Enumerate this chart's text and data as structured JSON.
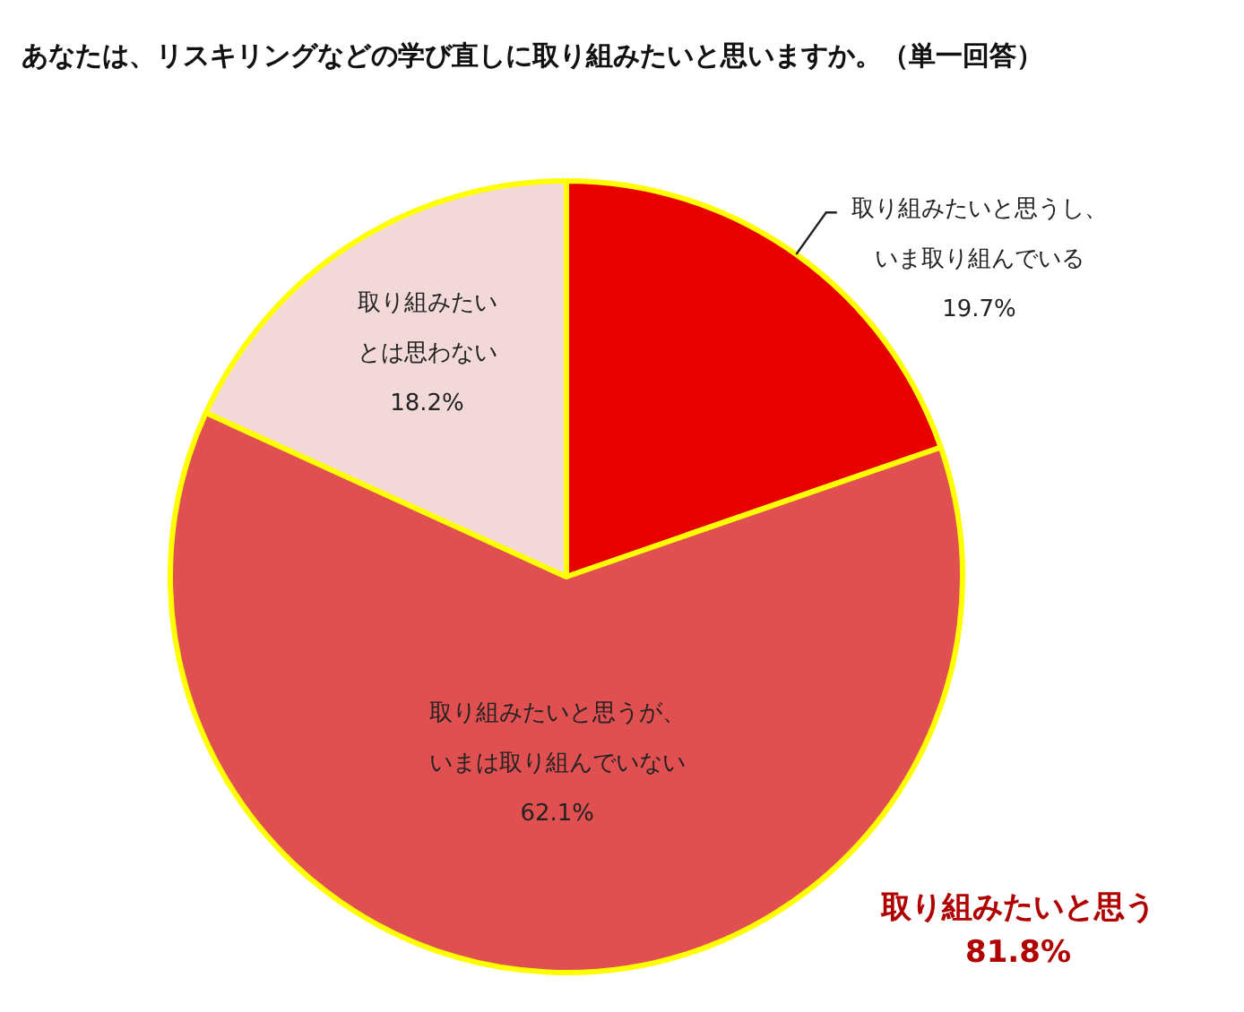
{
  "chart_data": {
    "type": "pie",
    "title": "あなたは、リスキリングなどの学び直しに取り組みたいと思いますか。（単一回答）",
    "categories": [
      "取り組みたいと思うし、いま取り組んでいる",
      "取り組みたいと思うが、いまは取り組んでいない",
      "取り組みたいとは思わない"
    ],
    "values": [
      19.7,
      62.1,
      18.2
    ],
    "colors": [
      "#e60000",
      "#e05050",
      "#f2d8d8"
    ],
    "value_labels": [
      "19.7%",
      "62.1%",
      "18.2%"
    ],
    "annotations": [
      "取り組みたいと思う\n81.8%"
    ]
  }
}
